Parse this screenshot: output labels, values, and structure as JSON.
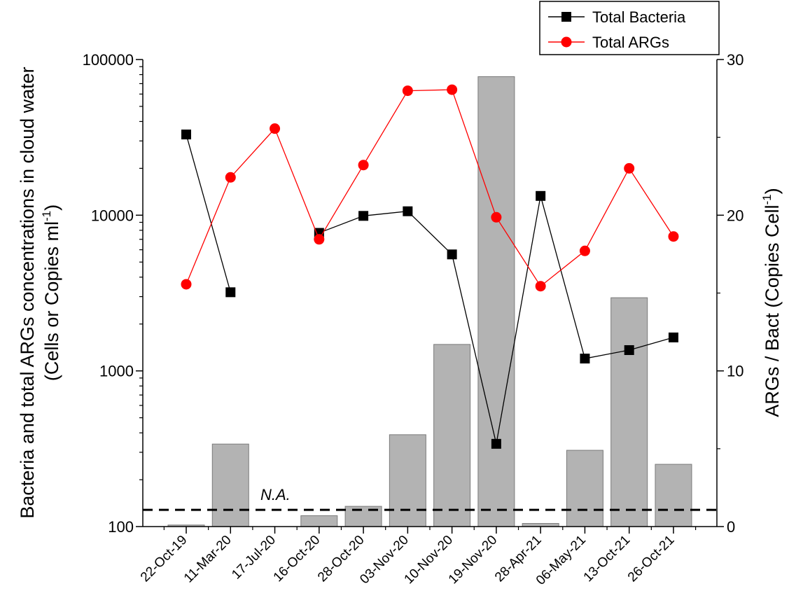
{
  "chart_data": {
    "type": "bar+line",
    "categories": [
      "22-Oct-19",
      "11-Mar-20",
      "17-Jul-20",
      "16-Oct-20",
      "28-Oct-20",
      "03-Nov-20",
      "10-Nov-20",
      "19-Nov-20",
      "28-Apr-21",
      "06-May-21",
      "13-Oct-21",
      "26-Oct-21"
    ],
    "left_axis": {
      "label_line1": "Bacteria and total ARGs concentrations in cloud water",
      "label_line2_pre": "(Cells or Copies ml",
      "label_line2_sup": "-1",
      "label_line2_post": ")",
      "scale": "log",
      "range": [
        100,
        100000
      ],
      "ticks": [
        100,
        1000,
        10000,
        100000
      ],
      "tick_labels": [
        "100",
        "1000",
        "10000",
        "100000"
      ]
    },
    "right_axis": {
      "label_pre": "ARGs / Bact (Copies Cell",
      "label_sup": "-1",
      "label_post": ")",
      "scale": "linear",
      "range": [
        0,
        30
      ],
      "ticks": [
        0,
        10,
        20,
        30
      ],
      "tick_labels": [
        "0",
        "10",
        "20",
        "30"
      ]
    },
    "bars": {
      "axis": "right",
      "color": "#b3b3b3",
      "values": [
        0.1,
        5.3,
        null,
        0.7,
        1.3,
        5.9,
        11.7,
        28.9,
        0.2,
        4.9,
        14.7,
        4.0
      ]
    },
    "series": [
      {
        "name": "Total Bacteria",
        "axis": "left",
        "color": "#000000",
        "marker": "square",
        "values": [
          33000,
          3200,
          null,
          7700,
          9900,
          10600,
          5600,
          340,
          13300,
          1200,
          1360,
          1640
        ]
      },
      {
        "name": "Total ARGs",
        "axis": "left",
        "color": "#ff0000",
        "marker": "circle",
        "values": [
          3600,
          17500,
          36000,
          7000,
          21000,
          63000,
          64000,
          9700,
          3500,
          5900,
          20000,
          7300
        ]
      }
    ],
    "reference_line": {
      "axis": "left",
      "value": 128,
      "style": "dashed",
      "label": "N.A."
    },
    "legend": {
      "position": "top-right"
    }
  }
}
